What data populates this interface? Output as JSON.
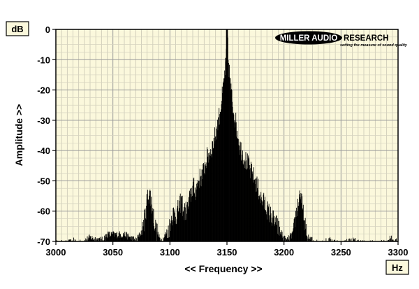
{
  "chart_data": {
    "type": "area",
    "title": "",
    "xlabel": "<< Frequency >>",
    "ylabel": "Amplitude >>",
    "x_unit": "Hz",
    "y_unit": "dB",
    "xlim": [
      3000,
      3300
    ],
    "ylim": [
      -70,
      0
    ],
    "xticks": [
      3000,
      3050,
      3100,
      3150,
      3200,
      3250,
      3300
    ],
    "yticks": [
      0,
      -10,
      -20,
      -30,
      -40,
      -50,
      -60,
      -70
    ],
    "grid": true,
    "background_color": "#fbf8dc",
    "fill_color": "#000000",
    "series": [
      {
        "x": [
          3000,
          3010,
          3017,
          3020,
          3030,
          3040,
          3045,
          3050,
          3060,
          3065,
          3070,
          3075,
          3078,
          3080,
          3082,
          3084,
          3086,
          3088,
          3090,
          3093,
          3096,
          3100,
          3102,
          3105,
          3108,
          3110,
          3112,
          3115,
          3118,
          3120,
          3122,
          3125,
          3128,
          3130,
          3132,
          3135,
          3137,
          3139,
          3141,
          3143,
          3145,
          3146,
          3147,
          3148,
          3149,
          3150,
          3151,
          3152,
          3153,
          3155,
          3157,
          3159,
          3161,
          3163,
          3165,
          3168,
          3170,
          3173,
          3175,
          3178,
          3180,
          3183,
          3185,
          3188,
          3190,
          3193,
          3196,
          3199,
          3202,
          3205,
          3208,
          3210,
          3212,
          3214,
          3216,
          3218,
          3220,
          3225,
          3230,
          3240,
          3250,
          3260,
          3270,
          3280,
          3290,
          3293,
          3300
        ],
        "values": [
          -70,
          -70,
          -69,
          -70,
          -68,
          -69,
          -67,
          -67,
          -67,
          -68,
          -69,
          -66,
          -60,
          -54,
          -52,
          -57,
          -62,
          -65,
          -68,
          -69,
          -67,
          -63,
          -59,
          -60,
          -57,
          -55,
          -59,
          -58,
          -53,
          -50,
          -52,
          -48,
          -47,
          -44,
          -41,
          -39,
          -37,
          -34,
          -31,
          -27,
          -22,
          -20,
          -16,
          -12,
          -9,
          0,
          -9,
          -13,
          -18,
          -24,
          -28,
          -33,
          -37,
          -39,
          -41,
          -43,
          -45,
          -47,
          -49,
          -52,
          -55,
          -56,
          -58,
          -60,
          -61,
          -63,
          -65,
          -68,
          -69,
          -68,
          -66,
          -60,
          -56,
          -52,
          -58,
          -63,
          -68,
          -69,
          -70,
          -69,
          -70,
          -69,
          -70,
          -70,
          -70,
          -68,
          -70
        ]
      }
    ]
  },
  "logo": {
    "text_left": "MILLER AUDIO",
    "text_right": "RESEARCH",
    "tagline": "setting the measure of sound quality"
  }
}
